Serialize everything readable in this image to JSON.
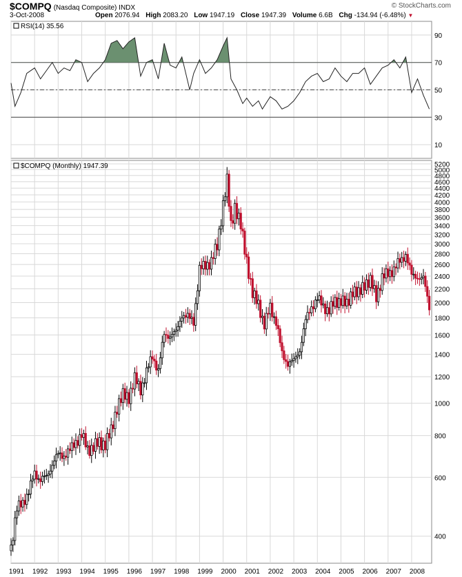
{
  "header": {
    "symbol": "$COMPQ",
    "description": "(Nasdaq Composite) INDX",
    "date": "3-Oct-2008",
    "open_label": "Open",
    "open": "2076.94",
    "high_label": "High",
    "high": "2083.20",
    "low_label": "Low",
    "low": "1947.19",
    "close_label": "Close",
    "close": "1947.39",
    "volume_label": "Volume",
    "volume": "6.6B",
    "chg_label": "Chg",
    "chg": "-134.94 (-6.48%)",
    "brand": "© StockCharts.com",
    "chg_icon": "down-triangle-icon"
  },
  "colors": {
    "up": "#000000",
    "down": "#c0102e",
    "rsi_fill": "#6b9070",
    "grid": "#d8d8d8"
  },
  "chart_data": [
    {
      "type": "line",
      "title": "RSI(14) 35.56",
      "ylim": [
        0,
        100
      ],
      "yticks": [
        "90",
        "70",
        "50",
        "30",
        "10"
      ],
      "reference_lines": [
        70,
        50,
        30
      ],
      "series": [
        {
          "name": "RSI(14)",
          "x": [
            "1991-01",
            "1991-03",
            "1991-06",
            "1991-09",
            "1992-01",
            "1992-04",
            "1992-07",
            "1992-10",
            "1993-01",
            "1993-04",
            "1993-07",
            "1993-10",
            "1994-01",
            "1994-04",
            "1994-07",
            "1994-10",
            "1995-01",
            "1995-04",
            "1995-07",
            "1995-10",
            "1996-01",
            "1996-04",
            "1996-07",
            "1996-10",
            "1997-01",
            "1997-04",
            "1997-07",
            "1997-10",
            "1998-01",
            "1998-04",
            "1998-08",
            "1998-10",
            "1999-01",
            "1999-04",
            "1999-07",
            "1999-10",
            "2000-01",
            "2000-03",
            "2000-05",
            "2000-08",
            "2000-11",
            "2001-01",
            "2001-04",
            "2001-07",
            "2001-09",
            "2002-01",
            "2002-04",
            "2002-07",
            "2002-10",
            "2003-01",
            "2003-04",
            "2003-07",
            "2003-10",
            "2004-01",
            "2004-04",
            "2004-07",
            "2004-10",
            "2005-01",
            "2005-04",
            "2005-07",
            "2005-10",
            "2006-01",
            "2006-04",
            "2006-07",
            "2006-10",
            "2007-01",
            "2007-04",
            "2007-07",
            "2007-10",
            "2008-01",
            "2008-04",
            "2008-07",
            "2008-10"
          ],
          "values": [
            55,
            38,
            48,
            62,
            66,
            58,
            64,
            70,
            62,
            66,
            64,
            72,
            70,
            56,
            62,
            66,
            72,
            84,
            86,
            80,
            85,
            88,
            60,
            70,
            72,
            58,
            84,
            68,
            66,
            74,
            50,
            62,
            72,
            62,
            66,
            72,
            82,
            88,
            58,
            50,
            40,
            44,
            38,
            42,
            36,
            45,
            42,
            36,
            38,
            42,
            48,
            56,
            60,
            62,
            56,
            58,
            66,
            60,
            56,
            62,
            62,
            66,
            54,
            60,
            66,
            68,
            72,
            66,
            74,
            48,
            58,
            46,
            36
          ]
        }
      ]
    },
    {
      "type": "candlestick",
      "title": "$COMPQ (Monthly) 1947.39",
      "scale": "log",
      "ylim": [
        340,
        5200
      ],
      "yticks": [
        "5200",
        "5000",
        "4800",
        "4600",
        "4400",
        "4200",
        "4000",
        "3800",
        "3600",
        "3400",
        "3200",
        "3000",
        "2800",
        "2600",
        "2400",
        "2200",
        "2000",
        "1800",
        "1600",
        "1400",
        "1200",
        "1000",
        "800",
        "600",
        "400"
      ],
      "xticks": [
        "1991",
        "1992",
        "1993",
        "1994",
        "1995",
        "1996",
        "1997",
        "1998",
        "1999",
        "2000",
        "2001",
        "2002",
        "2003",
        "2004",
        "2005",
        "2006",
        "2007",
        "2008"
      ],
      "series": [
        {
          "name": "$COMPQ (Monthly)",
          "x": [
            "1991-01",
            "1991-04",
            "1991-07",
            "1991-10",
            "1992-01",
            "1992-04",
            "1992-07",
            "1992-10",
            "1993-01",
            "1993-04",
            "1993-07",
            "1993-10",
            "1994-01",
            "1994-04",
            "1994-07",
            "1994-10",
            "1995-01",
            "1995-04",
            "1995-07",
            "1995-10",
            "1996-01",
            "1996-04",
            "1996-07",
            "1996-10",
            "1997-01",
            "1997-04",
            "1997-07",
            "1997-10",
            "1998-01",
            "1998-04",
            "1998-07",
            "1998-10",
            "1999-01",
            "1999-04",
            "1999-07",
            "1999-10",
            "2000-01",
            "2000-03",
            "2000-05",
            "2000-07",
            "2000-10",
            "2001-01",
            "2001-04",
            "2001-07",
            "2001-10",
            "2002-01",
            "2002-04",
            "2002-07",
            "2002-10",
            "2003-01",
            "2003-04",
            "2003-07",
            "2003-10",
            "2004-01",
            "2004-04",
            "2004-07",
            "2004-10",
            "2005-01",
            "2005-04",
            "2005-07",
            "2005-10",
            "2006-01",
            "2006-04",
            "2006-07",
            "2006-10",
            "2007-01",
            "2007-04",
            "2007-07",
            "2007-10",
            "2008-01",
            "2008-04",
            "2008-07",
            "2008-10"
          ],
          "values": [
            373,
            480,
            508,
            540,
            620,
            590,
            600,
            660,
            700,
            700,
            720,
            770,
            800,
            730,
            740,
            760,
            760,
            820,
            980,
            1050,
            1050,
            1180,
            1100,
            1240,
            1380,
            1260,
            1600,
            1600,
            1620,
            1850,
            1800,
            1770,
            2500,
            2600,
            2650,
            2950,
            3950,
            4600,
            3400,
            3900,
            3370,
            2700,
            2100,
            2000,
            1700,
            1950,
            1750,
            1400,
            1320,
            1330,
            1450,
            1760,
            1950,
            2050,
            1950,
            1900,
            2000,
            2050,
            1950,
            2200,
            2100,
            2300,
            2300,
            2100,
            2360,
            2450,
            2520,
            2650,
            2800,
            2400,
            2400,
            2350,
            1947
          ]
        }
      ]
    }
  ]
}
